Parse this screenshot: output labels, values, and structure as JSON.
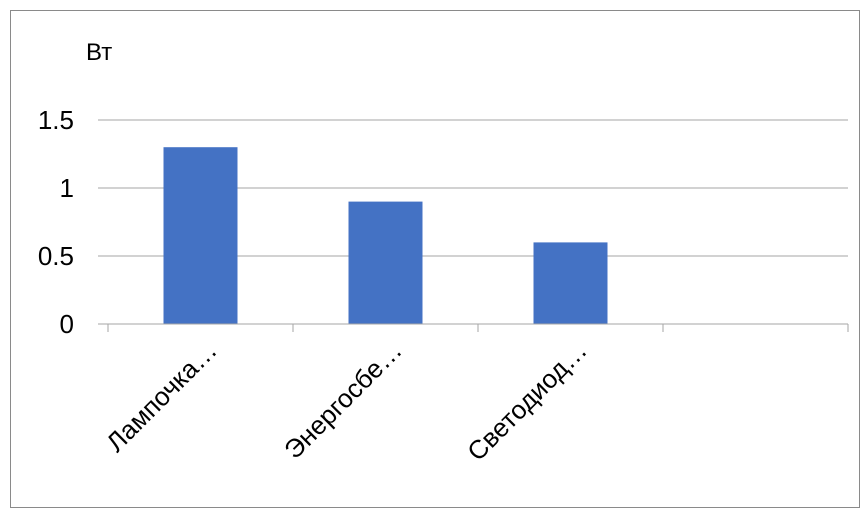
{
  "chart_data": {
    "type": "bar",
    "title": "",
    "xlabel": "",
    "ylabel": "Вт",
    "categories": [
      "Лампочка…",
      "Энергосбе…",
      "Светодиод…",
      ""
    ],
    "values": [
      1.3,
      0.9,
      0.6,
      null
    ],
    "ylim": [
      0,
      1.5
    ],
    "yticks": [
      "0",
      "0.5",
      "1",
      "1.5"
    ],
    "grid": true,
    "bar_color": "#4472c4",
    "grid_color": "#a6a6a6",
    "legend": "none"
  }
}
